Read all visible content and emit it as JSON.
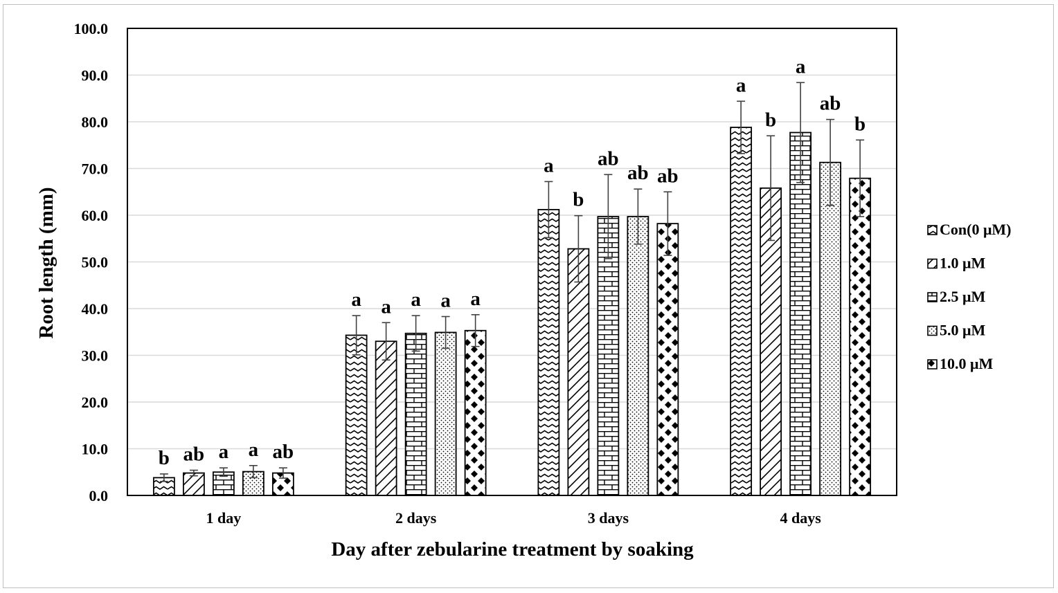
{
  "chart_data": {
    "type": "bar",
    "title": "",
    "xlabel": "Day after zebularine  treatment by soaking",
    "ylabel": "Root length (mm)",
    "ylim": [
      0,
      100
    ],
    "yticks": [
      "0.0",
      "10.0",
      "20.0",
      "30.0",
      "40.0",
      "50.0",
      "60.0",
      "70.0",
      "80.0",
      "90.0",
      "100.0"
    ],
    "grid": true,
    "legend_position": "right",
    "categories": [
      "1 day",
      "2 days",
      "3 days",
      "4 days"
    ],
    "series": [
      {
        "name": "Con(0 μM)",
        "pattern": "wave",
        "values": [
          3.8,
          34.3,
          61.2,
          78.8
        ],
        "errors": [
          0.8,
          4.2,
          6.0,
          5.6
        ],
        "letters": [
          "b",
          "a",
          "a",
          "a"
        ]
      },
      {
        "name": "1.0 μM",
        "pattern": "diagonal",
        "values": [
          4.8,
          33.0,
          52.8,
          65.8
        ],
        "errors": [
          0.6,
          4.0,
          7.1,
          11.2
        ],
        "letters": [
          "ab",
          "a",
          "b",
          "b"
        ]
      },
      {
        "name": "2.5 μM",
        "pattern": "brick",
        "values": [
          5.0,
          34.7,
          59.7,
          77.7
        ],
        "errors": [
          0.9,
          3.8,
          9.0,
          10.7
        ],
        "letters": [
          "a",
          "a",
          "ab",
          "a"
        ]
      },
      {
        "name": "5.0 μM",
        "pattern": "dots",
        "values": [
          5.1,
          34.9,
          59.7,
          71.3
        ],
        "errors": [
          1.3,
          3.4,
          5.9,
          9.2
        ],
        "letters": [
          "a",
          "a",
          "ab",
          "ab"
        ]
      },
      {
        "name": "10.0 μM",
        "pattern": "diamond",
        "values": [
          4.8,
          35.3,
          58.2,
          67.9
        ],
        "errors": [
          1.1,
          3.4,
          6.8,
          8.2
        ],
        "letters": [
          "ab",
          "a",
          "ab",
          "b"
        ]
      }
    ]
  }
}
